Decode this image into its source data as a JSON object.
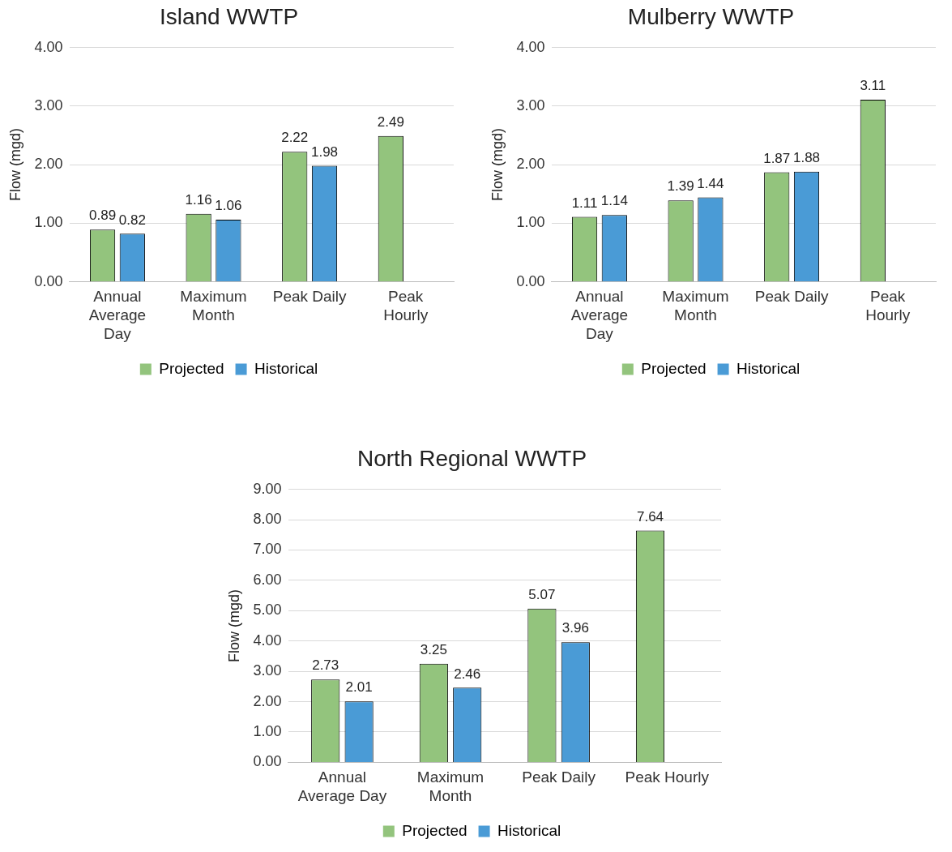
{
  "chart_data": [
    {
      "type": "bar",
      "title": "Island WWTP",
      "ylabel": "Flow (mgd)",
      "categories": [
        "Annual Average Day",
        "Maximum Month",
        "Peak Daily",
        "Peak Hourly"
      ],
      "series": [
        {
          "name": "Projected",
          "color": "#93c47d",
          "values": [
            0.89,
            1.16,
            2.22,
            2.49
          ]
        },
        {
          "name": "Historical",
          "color": "#4a9bd6",
          "values": [
            0.82,
            1.06,
            1.98,
            null
          ]
        }
      ],
      "ylim": [
        0,
        4
      ],
      "yticks": [
        {
          "value": 0,
          "label": "0.00"
        },
        {
          "value": 1,
          "label": "1.00"
        },
        {
          "value": 2,
          "label": "2.00"
        },
        {
          "value": 3,
          "label": "3.00"
        },
        {
          "value": 4,
          "label": "4.00"
        }
      ],
      "grid": "y",
      "legend": "bottom",
      "data_labels": true
    },
    {
      "type": "bar",
      "title": "Mulberry WWTP",
      "ylabel": "Flow (mgd)",
      "categories": [
        "Annual Average Day",
        "Maximum Month",
        "Peak Daily",
        "Peak Hourly"
      ],
      "series": [
        {
          "name": "Projected",
          "color": "#93c47d",
          "values": [
            1.11,
            1.39,
            1.87,
            3.11
          ]
        },
        {
          "name": "Historical",
          "color": "#4a9bd6",
          "values": [
            1.14,
            1.44,
            1.88,
            null
          ]
        }
      ],
      "ylim": [
        0,
        4
      ],
      "yticks": [
        {
          "value": 0,
          "label": "0.00"
        },
        {
          "value": 1,
          "label": "1.00"
        },
        {
          "value": 2,
          "label": "2.00"
        },
        {
          "value": 3,
          "label": "3.00"
        },
        {
          "value": 4,
          "label": "4.00"
        }
      ],
      "grid": "y",
      "legend": "bottom",
      "data_labels": true
    },
    {
      "type": "bar",
      "title": "North Regional WWTP",
      "ylabel": "Flow (mgd)",
      "categories": [
        "Annual Average Day",
        "Maximum Month",
        "Peak Daily",
        "Peak Hourly"
      ],
      "series": [
        {
          "name": "Projected",
          "color": "#93c47d",
          "values": [
            2.73,
            3.25,
            5.07,
            7.64
          ]
        },
        {
          "name": "Historical",
          "color": "#4a9bd6",
          "values": [
            2.01,
            2.46,
            3.96,
            null
          ]
        }
      ],
      "ylim": [
        0,
        9
      ],
      "yticks": [
        {
          "value": 0,
          "label": "0.00"
        },
        {
          "value": 1,
          "label": "1.00"
        },
        {
          "value": 2,
          "label": "2.00"
        },
        {
          "value": 3,
          "label": "3.00"
        },
        {
          "value": 4,
          "label": "4.00"
        },
        {
          "value": 5,
          "label": "5.00"
        },
        {
          "value": 6,
          "label": "6.00"
        },
        {
          "value": 7,
          "label": "7.00"
        },
        {
          "value": 8,
          "label": "8.00"
        },
        {
          "value": 9,
          "label": "9.00"
        }
      ],
      "grid": "y",
      "legend": "bottom",
      "data_labels": true
    }
  ]
}
